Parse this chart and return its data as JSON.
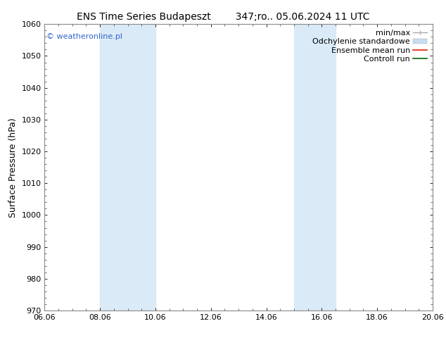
{
  "title_left": "ENS Time Series Budapeszt",
  "title_right": "347;ro.. 05.06.2024 11 UTC",
  "ylabel": "Surface Pressure (hPa)",
  "ylim": [
    970,
    1060
  ],
  "yticks": [
    970,
    980,
    990,
    1000,
    1010,
    1020,
    1030,
    1040,
    1050,
    1060
  ],
  "xlim": [
    0,
    14
  ],
  "xtick_labels": [
    "06.06",
    "08.06",
    "10.06",
    "12.06",
    "14.06",
    "16.06",
    "18.06",
    "20.06"
  ],
  "xtick_positions": [
    0,
    2,
    4,
    6,
    8,
    10,
    12,
    14
  ],
  "shaded_regions": [
    {
      "start": 2.0,
      "end": 4.0,
      "color": "#daeaf7"
    },
    {
      "start": 9.0,
      "end": 10.5,
      "color": "#daeaf7"
    }
  ],
  "copyright_text": "© weatheronline.pl",
  "copyright_color": "#3366cc",
  "background_color": "#ffffff",
  "plot_bg_color": "#ffffff",
  "legend_items": [
    {
      "label": "min/max",
      "line_color": "#aaaaaa",
      "type": "errorbar"
    },
    {
      "label": "Odchylenie standardowe",
      "line_color": "#c8ddf0",
      "type": "bar"
    },
    {
      "label": "Ensemble mean run",
      "line_color": "#dd2200",
      "type": "line"
    },
    {
      "label": "Controll run",
      "line_color": "#006600",
      "type": "line"
    }
  ],
  "title_fontsize": 10,
  "label_fontsize": 9,
  "tick_fontsize": 8,
  "legend_fontsize": 8,
  "spine_color": "#888888"
}
